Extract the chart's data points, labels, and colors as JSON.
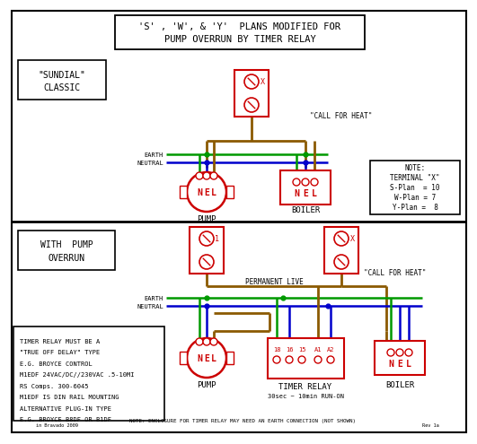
{
  "title_line1": "'S' , 'W', & 'Y'  PLANS MODIFIED FOR",
  "title_line2": "PUMP OVERRUN BY TIMER RELAY",
  "bg_color": "#ffffff",
  "red": "#cc0000",
  "green": "#009900",
  "blue": "#0000cc",
  "brown": "#8B5A00",
  "black": "#000000",
  "note_terminal": "NOTE:\nTERMINAL \"X\"\nS-Plan  = 10\nW-Plan = 7\nY-Plan =  8",
  "timer_note": "NOTE: ENCLOSURE FOR TIMER RELAY MAY NEED AN EARTH CONNECTION (NOT SHOWN)",
  "bottom_left_note": "TIMER RELAY MUST BE A\n\"TRUE OFF DELAY\" TYPE\nE.G. BROYCE CONTROL\nM1EDF 24VAC/DC//230VAC .5-10MI\nRS Comps. 300-6045\nM1EDF IS DIN RAIL MOUNTING\nALTERNATIVE PLUG-IN TYPE\nE.G. BROYCE B8DF OR B1DF"
}
